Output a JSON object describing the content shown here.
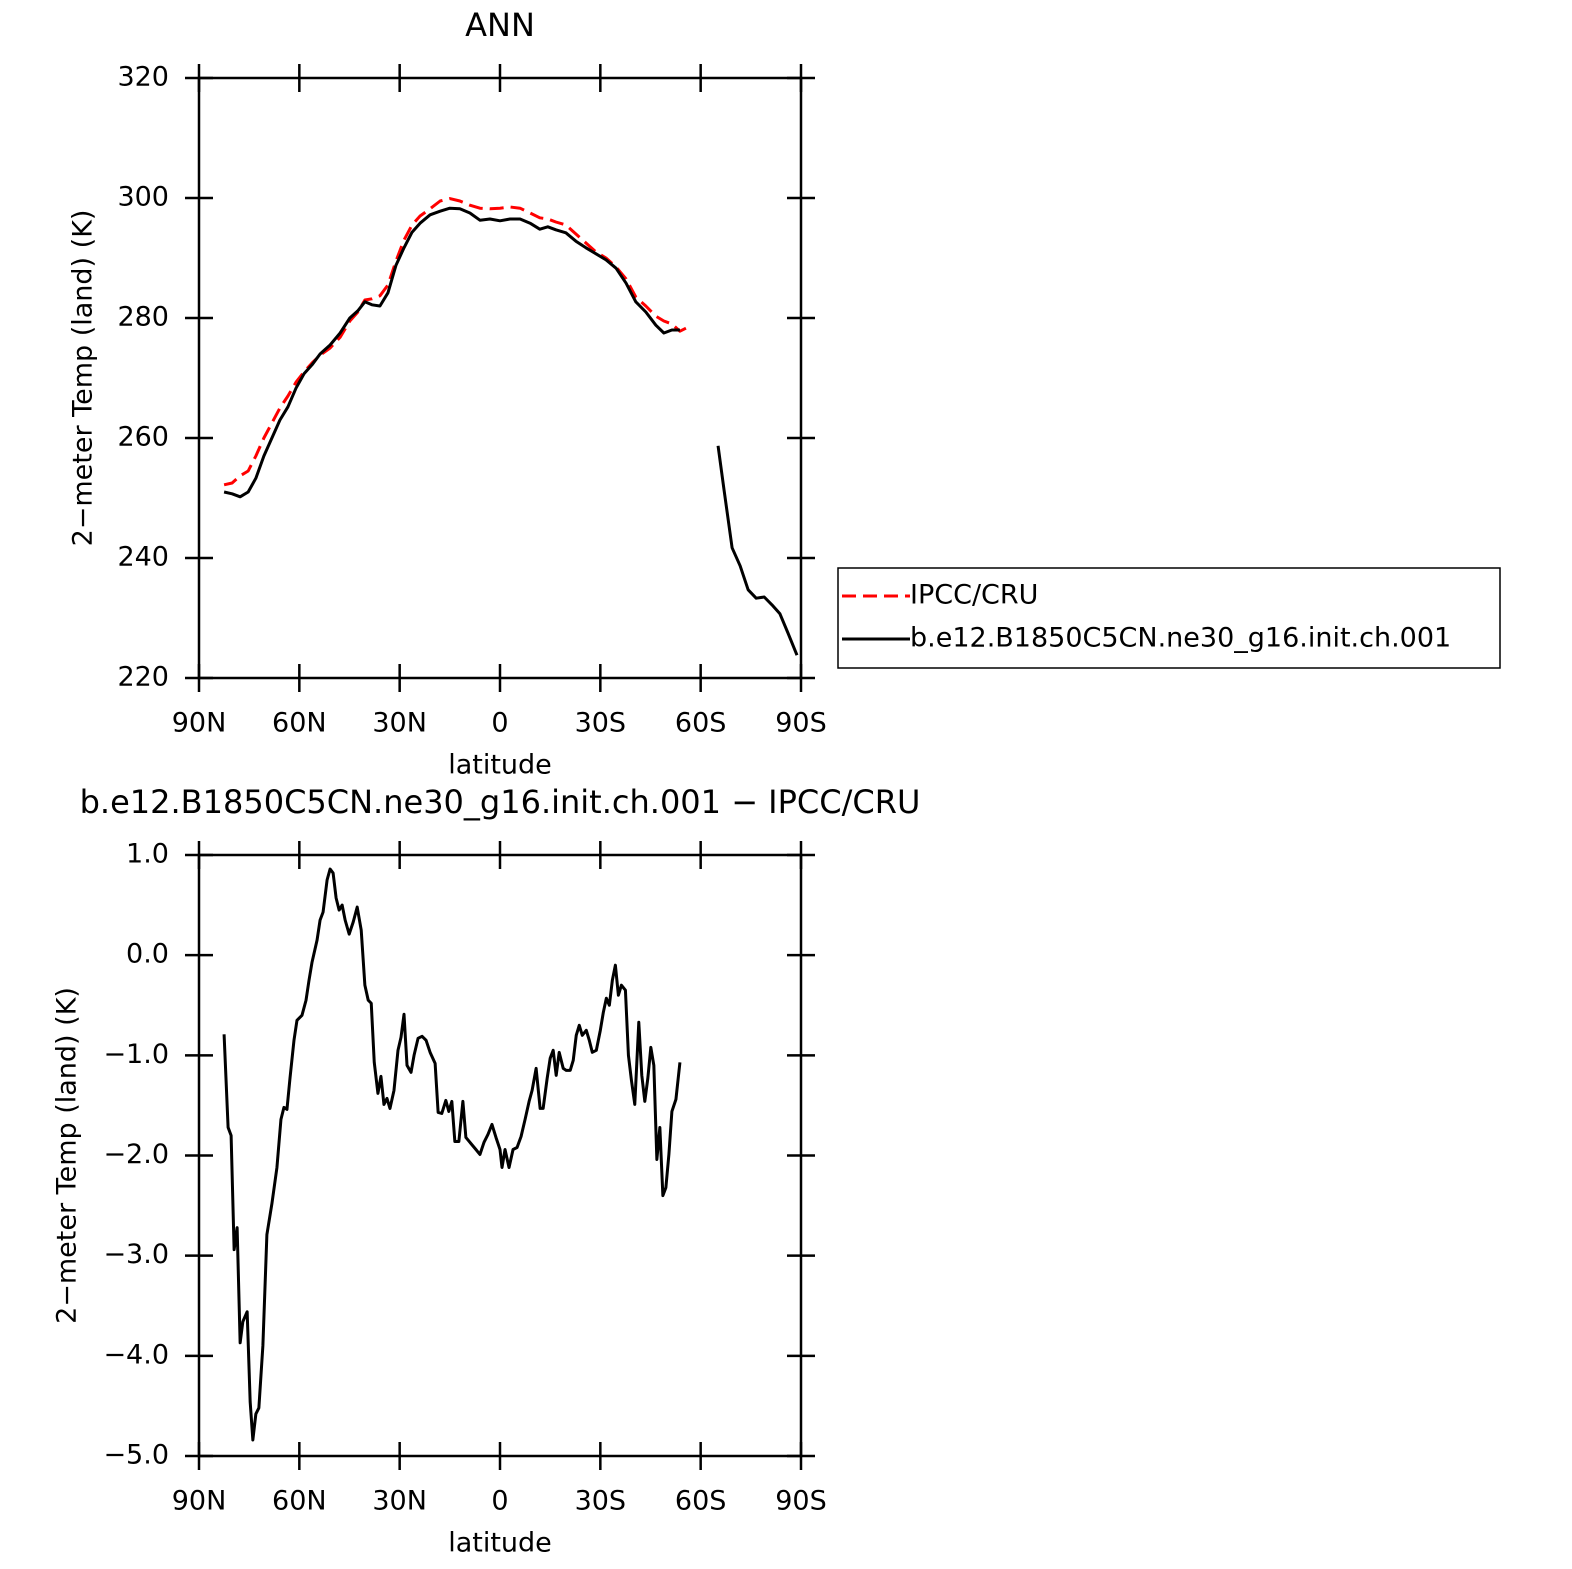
{
  "chart_data": [
    {
      "type": "line",
      "title": "ANN",
      "xlabel": "latitude",
      "ylabel": "2−meter Temp (land) (K)",
      "xlim": [
        90,
        -90
      ],
      "xticks": [
        {
          "value": 90,
          "label": "90N"
        },
        {
          "value": 60,
          "label": "60N"
        },
        {
          "value": 30,
          "label": "30N"
        },
        0,
        {
          "value": -30,
          "label": "30S"
        },
        {
          "value": -60,
          "label": "60S"
        },
        {
          "value": -90,
          "label": "90S"
        }
      ],
      "ylim": [
        220,
        320
      ],
      "yticks": [
        220,
        240,
        260,
        280,
        300,
        320
      ],
      "legend": "right",
      "x": [
        82.5,
        80.1,
        77.7,
        75.3,
        73.0,
        70.6,
        68.2,
        65.8,
        63.4,
        61.0,
        58.6,
        56.2,
        53.8,
        50.8,
        47.8,
        44.9,
        42.5,
        40.4,
        38.3,
        35.9,
        33.5,
        31.1,
        28.7,
        26.3,
        23.9,
        20.9,
        17.9,
        15.0,
        12.0,
        9.0,
        6.0,
        3.0,
        0,
        -3.0,
        -6.0,
        -9.0,
        -11.9,
        -14.3,
        -16.7,
        -19.7,
        -22.7,
        -25.7,
        -28.7,
        -31.7,
        -34.7,
        -37.7,
        -40.6,
        -43.6,
        -46.6,
        -49.0,
        -51.4,
        -53.8,
        -55.6,
        -65.2,
        -67.0,
        -69.4,
        -71.8,
        -74.2,
        -76.6,
        -79.0,
        -81.3,
        -83.7,
        -86.1,
        -88.8
      ],
      "series": [
        {
          "name": "IPCC/CRU",
          "color": "#ff0000",
          "dashed": true,
          "values": [
            252.2,
            252.5,
            253.7,
            254.5,
            257.0,
            260.0,
            262.5,
            265.0,
            267.0,
            269.3,
            271.0,
            272.5,
            273.8,
            275.0,
            276.8,
            279.5,
            281.0,
            283.0,
            283.2,
            283.7,
            285.5,
            289.5,
            293.0,
            295.5,
            297.0,
            298.2,
            299.5,
            299.9,
            299.5,
            298.8,
            298.3,
            298.2,
            298.3,
            298.5,
            298.3,
            297.5,
            296.7,
            296.5,
            296.0,
            295.5,
            294.0,
            292.5,
            291.0,
            290.0,
            288.5,
            286.5,
            283.5,
            282.0,
            280.3,
            279.5,
            279.0,
            277.8,
            278.3,
            null,
            null,
            null,
            null,
            null,
            null,
            null,
            null,
            null,
            null,
            null
          ]
        },
        {
          "name": "b.e12.B1850C5CN.ne30_g16.init.ch.001",
          "color": "#000000",
          "dashed": false,
          "values": [
            251.0,
            250.7,
            250.2,
            251.0,
            253.3,
            257.0,
            260.0,
            263.0,
            265.2,
            268.3,
            270.7,
            272.2,
            274.0,
            275.5,
            277.5,
            280.0,
            281.2,
            282.7,
            282.2,
            282.0,
            284.2,
            288.8,
            291.7,
            294.3,
            295.8,
            297.2,
            297.8,
            298.3,
            298.2,
            297.5,
            296.3,
            296.5,
            296.2,
            296.5,
            296.5,
            295.8,
            294.8,
            295.2,
            294.7,
            294.2,
            292.8,
            291.7,
            290.7,
            289.7,
            288.3,
            285.8,
            282.7,
            281.0,
            278.8,
            277.5,
            278.0,
            278.0,
            null,
            258.7,
            251.3,
            241.7,
            238.7,
            234.7,
            233.3,
            233.5,
            232.2,
            230.7,
            227.5,
            223.8
          ]
        }
      ]
    },
    {
      "type": "line",
      "title": "b.e12.B1850C5CN.ne30_g16.init.ch.001 − IPCC/CRU",
      "xlabel": "latitude",
      "ylabel": "2−meter Temp (land) (K)",
      "xlim": [
        90,
        -90
      ],
      "xticks": [
        {
          "value": 90,
          "label": "90N"
        },
        {
          "value": 60,
          "label": "60N"
        },
        {
          "value": 30,
          "label": "30N"
        },
        0,
        {
          "value": -30,
          "label": "30S"
        },
        {
          "value": -60,
          "label": "60S"
        },
        {
          "value": -90,
          "label": "90S"
        }
      ],
      "ylim": [
        -5,
        1
      ],
      "yticks": [
        {
          "value": -5,
          "label": "−5.0"
        },
        {
          "value": -4,
          "label": "−4.0"
        },
        {
          "value": -3,
          "label": "−3.0"
        },
        {
          "value": -2,
          "label": "−2.0"
        },
        {
          "value": -1,
          "label": "−1.0"
        },
        {
          "value": 0,
          "label": "0.0"
        },
        {
          "value": 1,
          "label": "1.0"
        }
      ],
      "color": "#000000",
      "x": [
        82.5,
        81.3,
        80.4,
        79.5,
        78.6,
        77.7,
        76.9,
        75.6,
        74.7,
        73.9,
        73.0,
        72.1,
        70.9,
        69.7,
        68.2,
        66.7,
        65.5,
        64.6,
        63.7,
        62.8,
        61.6,
        60.7,
        59.2,
        58.0,
        57.1,
        56.2,
        54.7,
        53.8,
        52.9,
        51.7,
        50.8,
        49.9,
        49.0,
        48.1,
        47.2,
        46.3,
        45.1,
        43.9,
        42.7,
        41.5,
        40.4,
        39.4,
        38.5,
        37.6,
        36.5,
        35.6,
        34.7,
        33.8,
        32.9,
        31.7,
        30.5,
        29.6,
        28.7,
        27.8,
        26.6,
        25.7,
        24.5,
        23.3,
        22.1,
        20.9,
        19.4,
        18.5,
        17.4,
        16.2,
        15.3,
        14.4,
        13.5,
        12.3,
        11.1,
        10.2,
        8.7,
        7.2,
        6.0,
        4.8,
        3.6,
        2.4,
        1.2,
        0,
        -0.6,
        -1.5,
        -2.7,
        -3.9,
        -5.1,
        -6.3,
        -7.5,
        -8.7,
        -9.6,
        -10.8,
        -12.0,
        -12.9,
        -14.1,
        -15.0,
        -15.9,
        -16.8,
        -17.7,
        -18.9,
        -19.8,
        -21.0,
        -21.9,
        -22.8,
        -23.7,
        -24.6,
        -25.8,
        -26.7,
        -27.6,
        -28.8,
        -30.0,
        -30.9,
        -31.8,
        -32.7,
        -33.6,
        -34.5,
        -35.4,
        -36.3,
        -37.5,
        -38.4,
        -39.3,
        -40.3,
        -41.5,
        -42.4,
        -43.3,
        -44.2,
        -45.1,
        -46.0,
        -46.9,
        -47.8,
        -48.7,
        -49.6,
        -50.5,
        -51.4,
        -52.6,
        -53.8
      ],
      "values": [
        -0.79,
        -1.72,
        -1.8,
        -2.94,
        -2.72,
        -3.87,
        -3.66,
        -3.56,
        -4.46,
        -4.84,
        -4.58,
        -4.52,
        -3.9,
        -2.79,
        -2.48,
        -2.12,
        -1.64,
        -1.52,
        -1.54,
        -1.23,
        -0.85,
        -0.65,
        -0.6,
        -0.45,
        -0.25,
        -0.07,
        0.15,
        0.35,
        0.43,
        0.75,
        0.86,
        0.82,
        0.57,
        0.45,
        0.5,
        0.35,
        0.21,
        0.33,
        0.48,
        0.25,
        -0.3,
        -0.45,
        -0.48,
        -1.07,
        -1.38,
        -1.21,
        -1.49,
        -1.43,
        -1.53,
        -1.35,
        -0.95,
        -0.82,
        -0.59,
        -1.1,
        -1.17,
        -1.0,
        -0.83,
        -0.81,
        -0.85,
        -0.97,
        -1.08,
        -1.57,
        -1.58,
        -1.45,
        -1.56,
        -1.46,
        -1.86,
        -1.86,
        -1.46,
        -1.82,
        -1.88,
        -1.94,
        -1.99,
        -1.87,
        -1.79,
        -1.69,
        -1.82,
        -1.94,
        -2.12,
        -1.94,
        -2.12,
        -1.94,
        -1.92,
        -1.81,
        -1.64,
        -1.46,
        -1.35,
        -1.13,
        -1.53,
        -1.53,
        -1.23,
        -1.03,
        -0.95,
        -1.2,
        -0.97,
        -1.13,
        -1.15,
        -1.15,
        -1.05,
        -0.8,
        -0.7,
        -0.8,
        -0.75,
        -0.85,
        -0.97,
        -0.95,
        -0.75,
        -0.57,
        -0.43,
        -0.5,
        -0.25,
        -0.1,
        -0.4,
        -0.3,
        -0.35,
        -1.0,
        -1.25,
        -1.49,
        -0.67,
        -1.2,
        -1.46,
        -1.23,
        -0.92,
        -1.1,
        -2.04,
        -1.72,
        -2.4,
        -2.32,
        -1.99,
        -1.56,
        -1.44,
        -1.07
      ]
    }
  ]
}
